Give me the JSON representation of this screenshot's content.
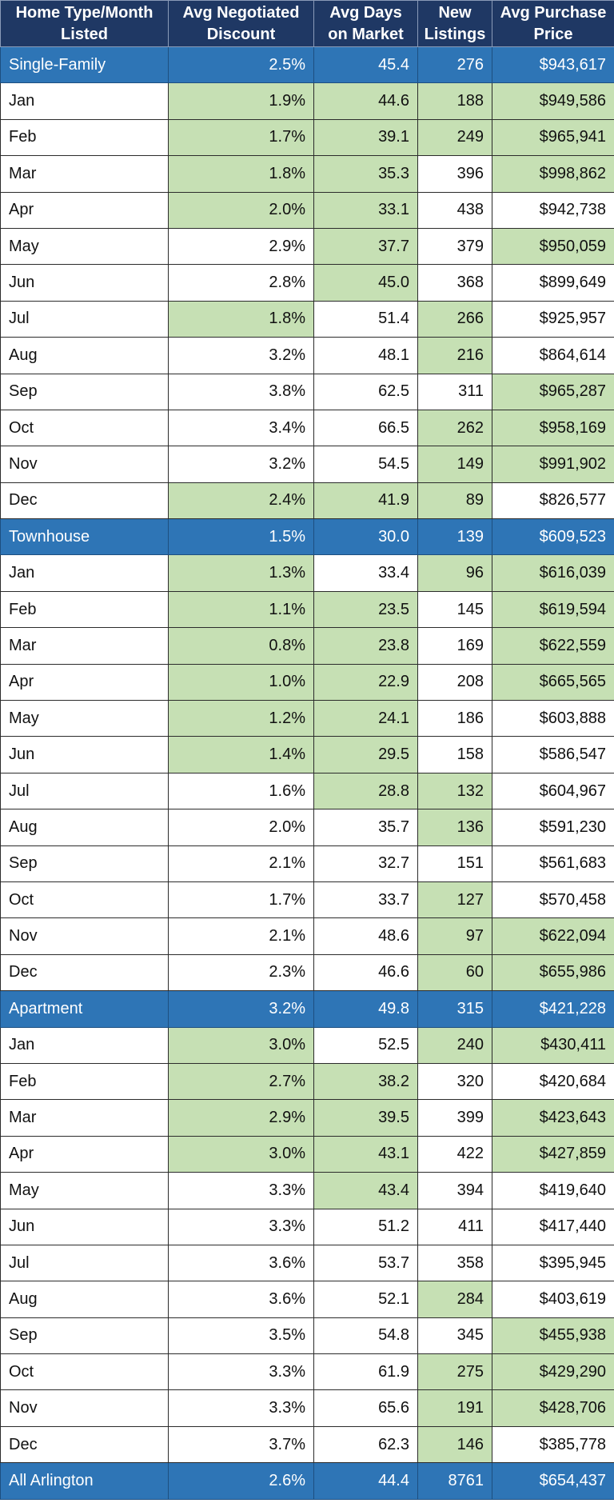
{
  "header": {
    "columns": [
      "Home Type/Month Listed",
      "Avg Negotiated Discount",
      "Avg Days on Market",
      "New Listings",
      "Avg Purchase Price"
    ]
  },
  "highlight_color": "#c6e0b4",
  "group_color": "#2e75b6",
  "header_color": "#1f3864",
  "groups": [
    {
      "name": "Single-Family",
      "summary": [
        "2.5%",
        "45.4",
        "276",
        "$943,617"
      ],
      "rows": [
        {
          "month": "Jan",
          "values": [
            "1.9%",
            "44.6",
            "188",
            "$949,586"
          ],
          "hl": [
            true,
            true,
            true,
            true
          ]
        },
        {
          "month": "Feb",
          "values": [
            "1.7%",
            "39.1",
            "249",
            "$965,941"
          ],
          "hl": [
            true,
            true,
            true,
            true
          ]
        },
        {
          "month": "Mar",
          "values": [
            "1.8%",
            "35.3",
            "396",
            "$998,862"
          ],
          "hl": [
            true,
            true,
            false,
            true
          ]
        },
        {
          "month": "Apr",
          "values": [
            "2.0%",
            "33.1",
            "438",
            "$942,738"
          ],
          "hl": [
            true,
            true,
            false,
            false
          ]
        },
        {
          "month": "May",
          "values": [
            "2.9%",
            "37.7",
            "379",
            "$950,059"
          ],
          "hl": [
            false,
            true,
            false,
            true
          ]
        },
        {
          "month": "Jun",
          "values": [
            "2.8%",
            "45.0",
            "368",
            "$899,649"
          ],
          "hl": [
            false,
            true,
            false,
            false
          ]
        },
        {
          "month": "Jul",
          "values": [
            "1.8%",
            "51.4",
            "266",
            "$925,957"
          ],
          "hl": [
            true,
            false,
            true,
            false
          ]
        },
        {
          "month": "Aug",
          "values": [
            "3.2%",
            "48.1",
            "216",
            "$864,614"
          ],
          "hl": [
            false,
            false,
            true,
            false
          ]
        },
        {
          "month": "Sep",
          "values": [
            "3.8%",
            "62.5",
            "311",
            "$965,287"
          ],
          "hl": [
            false,
            false,
            false,
            true
          ]
        },
        {
          "month": "Oct",
          "values": [
            "3.4%",
            "66.5",
            "262",
            "$958,169"
          ],
          "hl": [
            false,
            false,
            true,
            true
          ]
        },
        {
          "month": "Nov",
          "values": [
            "3.2%",
            "54.5",
            "149",
            "$991,902"
          ],
          "hl": [
            false,
            false,
            true,
            true
          ]
        },
        {
          "month": "Dec",
          "values": [
            "2.4%",
            "41.9",
            "89",
            "$826,577"
          ],
          "hl": [
            true,
            true,
            true,
            false
          ]
        }
      ]
    },
    {
      "name": "Townhouse",
      "summary": [
        "1.5%",
        "30.0",
        "139",
        "$609,523"
      ],
      "rows": [
        {
          "month": "Jan",
          "values": [
            "1.3%",
            "33.4",
            "96",
            "$616,039"
          ],
          "hl": [
            true,
            false,
            true,
            true
          ]
        },
        {
          "month": "Feb",
          "values": [
            "1.1%",
            "23.5",
            "145",
            "$619,594"
          ],
          "hl": [
            true,
            true,
            false,
            true
          ]
        },
        {
          "month": "Mar",
          "values": [
            "0.8%",
            "23.8",
            "169",
            "$622,559"
          ],
          "hl": [
            true,
            true,
            false,
            true
          ]
        },
        {
          "month": "Apr",
          "values": [
            "1.0%",
            "22.9",
            "208",
            "$665,565"
          ],
          "hl": [
            true,
            true,
            false,
            true
          ]
        },
        {
          "month": "May",
          "values": [
            "1.2%",
            "24.1",
            "186",
            "$603,888"
          ],
          "hl": [
            true,
            true,
            false,
            false
          ]
        },
        {
          "month": "Jun",
          "values": [
            "1.4%",
            "29.5",
            "158",
            "$586,547"
          ],
          "hl": [
            true,
            true,
            false,
            false
          ]
        },
        {
          "month": "Jul",
          "values": [
            "1.6%",
            "28.8",
            "132",
            "$604,967"
          ],
          "hl": [
            false,
            true,
            true,
            false
          ]
        },
        {
          "month": "Aug",
          "values": [
            "2.0%",
            "35.7",
            "136",
            "$591,230"
          ],
          "hl": [
            false,
            false,
            true,
            false
          ]
        },
        {
          "month": "Sep",
          "values": [
            "2.1%",
            "32.7",
            "151",
            "$561,683"
          ],
          "hl": [
            false,
            false,
            false,
            false
          ]
        },
        {
          "month": "Oct",
          "values": [
            "1.7%",
            "33.7",
            "127",
            "$570,458"
          ],
          "hl": [
            false,
            false,
            true,
            false
          ]
        },
        {
          "month": "Nov",
          "values": [
            "2.1%",
            "48.6",
            "97",
            "$622,094"
          ],
          "hl": [
            false,
            false,
            true,
            true
          ]
        },
        {
          "month": "Dec",
          "values": [
            "2.3%",
            "46.6",
            "60",
            "$655,986"
          ],
          "hl": [
            false,
            false,
            true,
            true
          ]
        }
      ]
    },
    {
      "name": "Apartment",
      "summary": [
        "3.2%",
        "49.8",
        "315",
        "$421,228"
      ],
      "rows": [
        {
          "month": "Jan",
          "values": [
            "3.0%",
            "52.5",
            "240",
            "$430,411"
          ],
          "hl": [
            true,
            false,
            true,
            true
          ]
        },
        {
          "month": "Feb",
          "values": [
            "2.7%",
            "38.2",
            "320",
            "$420,684"
          ],
          "hl": [
            true,
            true,
            false,
            false
          ]
        },
        {
          "month": "Mar",
          "values": [
            "2.9%",
            "39.5",
            "399",
            "$423,643"
          ],
          "hl": [
            true,
            true,
            false,
            true
          ]
        },
        {
          "month": "Apr",
          "values": [
            "3.0%",
            "43.1",
            "422",
            "$427,859"
          ],
          "hl": [
            true,
            true,
            false,
            true
          ]
        },
        {
          "month": "May",
          "values": [
            "3.3%",
            "43.4",
            "394",
            "$419,640"
          ],
          "hl": [
            false,
            true,
            false,
            false
          ]
        },
        {
          "month": "Jun",
          "values": [
            "3.3%",
            "51.2",
            "411",
            "$417,440"
          ],
          "hl": [
            false,
            false,
            false,
            false
          ]
        },
        {
          "month": "Jul",
          "values": [
            "3.6%",
            "53.7",
            "358",
            "$395,945"
          ],
          "hl": [
            false,
            false,
            false,
            false
          ]
        },
        {
          "month": "Aug",
          "values": [
            "3.6%",
            "52.1",
            "284",
            "$403,619"
          ],
          "hl": [
            false,
            false,
            true,
            false
          ]
        },
        {
          "month": "Sep",
          "values": [
            "3.5%",
            "54.8",
            "345",
            "$455,938"
          ],
          "hl": [
            false,
            false,
            false,
            true
          ]
        },
        {
          "month": "Oct",
          "values": [
            "3.3%",
            "61.9",
            "275",
            "$429,290"
          ],
          "hl": [
            false,
            false,
            true,
            true
          ]
        },
        {
          "month": "Nov",
          "values": [
            "3.3%",
            "65.6",
            "191",
            "$428,706"
          ],
          "hl": [
            false,
            false,
            true,
            true
          ]
        },
        {
          "month": "Dec",
          "values": [
            "3.7%",
            "62.3",
            "146",
            "$385,778"
          ],
          "hl": [
            false,
            false,
            true,
            false
          ]
        }
      ]
    }
  ],
  "total": {
    "name": "All Arlington",
    "values": [
      "2.6%",
      "44.4",
      "8761",
      "$654,437"
    ]
  }
}
